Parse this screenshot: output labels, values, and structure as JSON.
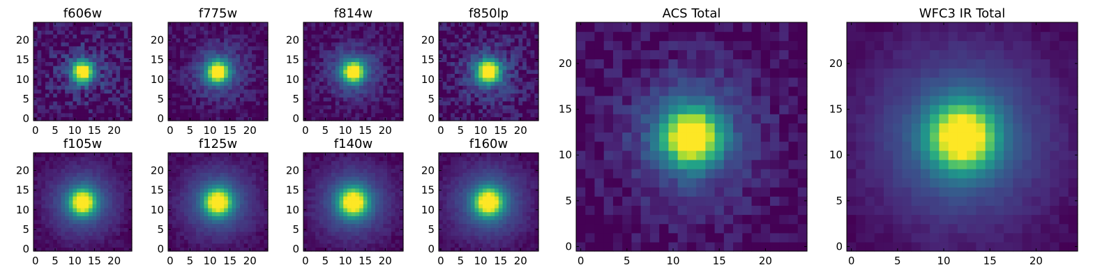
{
  "chart_data": [
    {
      "type": "heatmap",
      "title": "f606w",
      "grid": false,
      "xlim": [
        0,
        25
      ],
      "ylim": [
        0,
        25
      ],
      "xticks": [
        "0",
        "5",
        "10",
        "15",
        "20"
      ],
      "yticks": [
        "0",
        "5",
        "10",
        "15",
        "20"
      ],
      "colormap": "viridis",
      "peak": [
        12,
        12
      ],
      "core_width": 1.6,
      "halo_width": 4.5,
      "halo_level": 0.18,
      "noise": 0.09
    },
    {
      "type": "heatmap",
      "title": "f775w",
      "grid": false,
      "xlim": [
        0,
        25
      ],
      "ylim": [
        0,
        25
      ],
      "xticks": [
        "0",
        "5",
        "10",
        "15",
        "20"
      ],
      "yticks": [
        "0",
        "5",
        "10",
        "15",
        "20"
      ],
      "colormap": "viridis",
      "peak": [
        12,
        12
      ],
      "core_width": 1.7,
      "halo_width": 4.8,
      "halo_level": 0.2,
      "noise": 0.05
    },
    {
      "type": "heatmap",
      "title": "f814w",
      "grid": false,
      "xlim": [
        0,
        25
      ],
      "ylim": [
        0,
        25
      ],
      "xticks": [
        "0",
        "5",
        "10",
        "15",
        "20"
      ],
      "yticks": [
        "0",
        "5",
        "10",
        "15",
        "20"
      ],
      "colormap": "viridis",
      "peak": [
        12,
        12
      ],
      "core_width": 1.7,
      "halo_width": 4.8,
      "halo_level": 0.2,
      "noise": 0.05
    },
    {
      "type": "heatmap",
      "title": "f850lp",
      "grid": false,
      "xlim": [
        0,
        25
      ],
      "ylim": [
        0,
        25
      ],
      "xticks": [
        "0",
        "5",
        "10",
        "15",
        "20"
      ],
      "yticks": [
        "0",
        "5",
        "10",
        "15",
        "20"
      ],
      "colormap": "viridis",
      "peak": [
        12,
        12
      ],
      "core_width": 1.8,
      "halo_width": 5.0,
      "halo_level": 0.2,
      "noise": 0.08
    },
    {
      "type": "heatmap",
      "title": "f105w",
      "grid": false,
      "xlim": [
        0,
        25
      ],
      "ylim": [
        0,
        25
      ],
      "xticks": [
        "0",
        "5",
        "10",
        "15",
        "20"
      ],
      "yticks": [
        "0",
        "5",
        "10",
        "15",
        "20"
      ],
      "colormap": "viridis",
      "peak": [
        12,
        12
      ],
      "core_width": 2.0,
      "halo_width": 5.5,
      "halo_level": 0.25,
      "noise": 0.02
    },
    {
      "type": "heatmap",
      "title": "f125w",
      "grid": false,
      "xlim": [
        0,
        25
      ],
      "ylim": [
        0,
        25
      ],
      "xticks": [
        "0",
        "5",
        "10",
        "15",
        "20"
      ],
      "yticks": [
        "0",
        "5",
        "10",
        "15",
        "20"
      ],
      "colormap": "viridis",
      "peak": [
        12,
        12
      ],
      "core_width": 2.1,
      "halo_width": 5.7,
      "halo_level": 0.25,
      "noise": 0.02
    },
    {
      "type": "heatmap",
      "title": "f140w",
      "grid": false,
      "xlim": [
        0,
        25
      ],
      "ylim": [
        0,
        25
      ],
      "xticks": [
        "0",
        "5",
        "10",
        "15",
        "20"
      ],
      "yticks": [
        "0",
        "5",
        "10",
        "15",
        "20"
      ],
      "colormap": "viridis",
      "peak": [
        12,
        12
      ],
      "core_width": 2.2,
      "halo_width": 5.8,
      "halo_level": 0.25,
      "noise": 0.02
    },
    {
      "type": "heatmap",
      "title": "f160w",
      "grid": false,
      "xlim": [
        0,
        25
      ],
      "ylim": [
        0,
        25
      ],
      "xticks": [
        "0",
        "5",
        "10",
        "15",
        "20"
      ],
      "yticks": [
        "0",
        "5",
        "10",
        "15",
        "20"
      ],
      "colormap": "viridis",
      "peak": [
        12,
        12
      ],
      "core_width": 2.2,
      "halo_width": 6.0,
      "halo_level": 0.25,
      "noise": 0.02
    },
    {
      "type": "heatmap",
      "title": "ACS Total",
      "grid": false,
      "xlim": [
        0,
        25
      ],
      "ylim": [
        0,
        25
      ],
      "xticks": [
        "0",
        "5",
        "10",
        "15",
        "20"
      ],
      "yticks": [
        "0",
        "5",
        "10",
        "15",
        "20"
      ],
      "colormap": "viridis",
      "peak": [
        12,
        12
      ],
      "core_width": 1.9,
      "halo_width": 5.0,
      "halo_level": 0.22,
      "noise": 0.05
    },
    {
      "type": "heatmap",
      "title": "WFC3 IR Total",
      "grid": false,
      "xlim": [
        0,
        25
      ],
      "ylim": [
        0,
        25
      ],
      "xticks": [
        "0",
        "5",
        "10",
        "15",
        "20"
      ],
      "yticks": [
        "0",
        "5",
        "10",
        "15",
        "20"
      ],
      "colormap": "viridis",
      "peak": [
        12,
        12
      ],
      "core_width": 2.2,
      "halo_width": 6.0,
      "halo_level": 0.26,
      "noise": 0.015
    }
  ],
  "colors": {
    "viridis": [
      "#440154",
      "#482878",
      "#3e4989",
      "#31688e",
      "#26828e",
      "#1f9e89",
      "#35b779",
      "#6ece58",
      "#b5de2b",
      "#fde725"
    ]
  }
}
